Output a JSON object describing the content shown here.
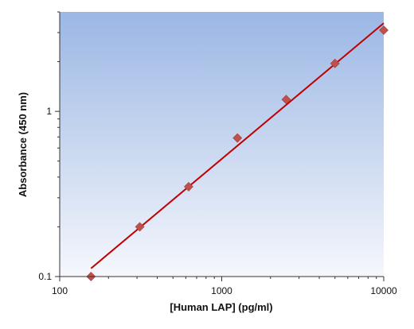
{
  "chart_data": {
    "type": "scatter",
    "title": "",
    "xlabel": "[Human LAP] (pg/ml)",
    "ylabel": "Absorbance (450 nm)",
    "x_scale": "log",
    "y_scale": "log",
    "xlim": [
      100,
      10000
    ],
    "ylim": [
      0.1,
      4.0
    ],
    "x_ticks": [
      {
        "value": 100,
        "label": "100"
      },
      {
        "value": 1000,
        "label": "1000"
      },
      {
        "value": 10000,
        "label": "10000"
      }
    ],
    "y_ticks": [
      {
        "value": 0.1,
        "label": "0.1"
      },
      {
        "value": 1,
        "label": "1"
      }
    ],
    "grid": false,
    "legend": "none",
    "series": [
      {
        "marker": "diamond",
        "color": "#c0504d",
        "x": [
          156,
          312,
          625,
          1250,
          2500,
          5000,
          10000
        ],
        "y": [
          0.1,
          0.2,
          0.35,
          0.69,
          1.18,
          1.95,
          3.1
        ]
      }
    ],
    "fit_line": {
      "color": "#c00000",
      "x": [
        156,
        10000
      ],
      "y": [
        0.112,
        3.42
      ]
    },
    "background_gradient": [
      "#9bb7e4",
      "#f5f7fc"
    ]
  }
}
